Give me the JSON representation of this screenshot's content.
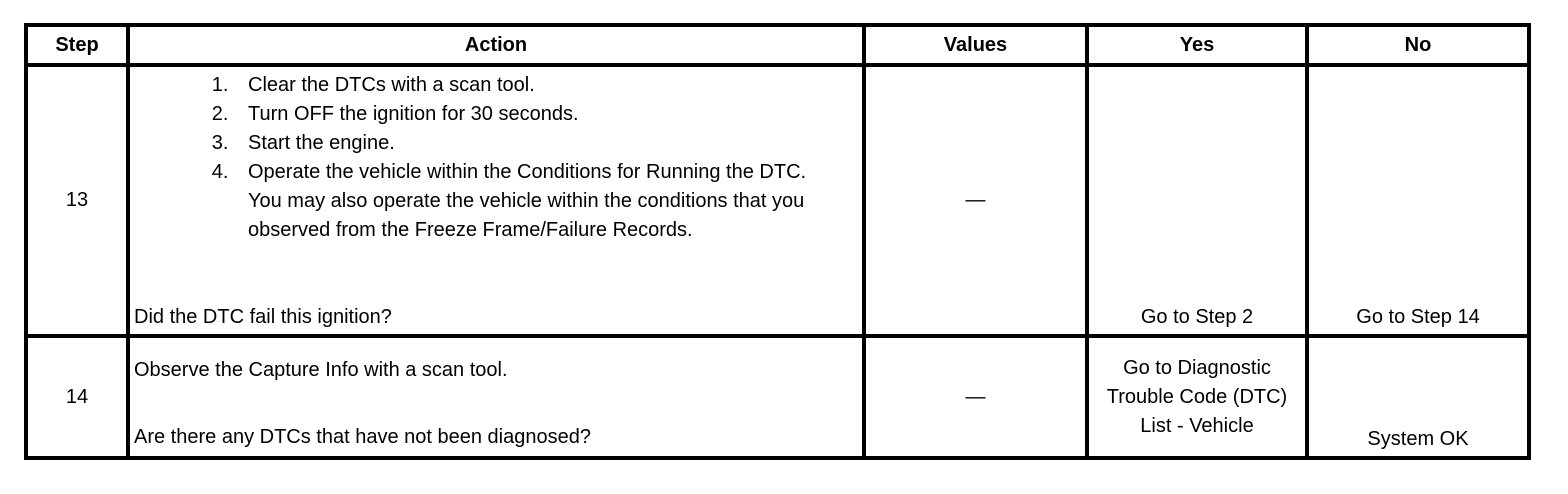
{
  "headers": [
    "Step",
    "Action",
    "Values",
    "Yes",
    "No"
  ],
  "rows": [
    {
      "step": "13",
      "action_steps": [
        "Clear the DTCs with a scan tool.",
        "Turn OFF the ignition for 30 seconds.",
        "Start the engine.",
        "Operate the vehicle within the Conditions for Running the DTC. You may also operate the vehicle within the conditions that you observed from the Freeze Frame/Failure Records."
      ],
      "question": "Did the DTC fail this ignition?",
      "values": "—",
      "yes": "Go to Step 2",
      "no": "Go to Step 14"
    },
    {
      "step": "14",
      "action": "Observe the Capture Info with a scan tool.",
      "question": "Are there any DTCs that have not been diagnosed?",
      "values": "—",
      "yes": "Go to Diagnostic Trouble Code (DTC) List - Vehicle",
      "no": "System OK"
    }
  ]
}
